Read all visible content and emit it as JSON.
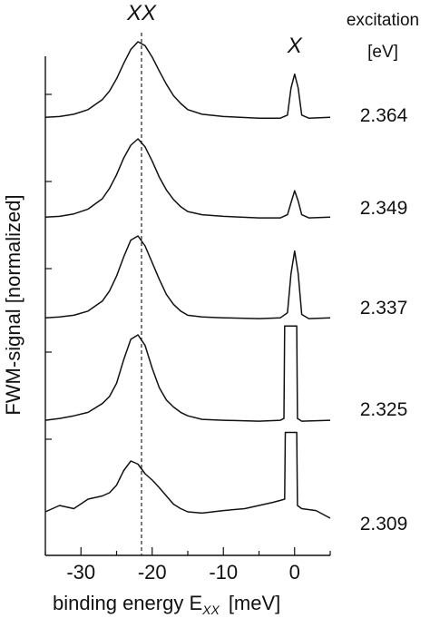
{
  "chart_data": {
    "type": "line",
    "title": "",
    "xlabel": "binding energy E",
    "xlabel_subscript": "XX",
    "xlabel_unit": "[meV]",
    "ylabel": "FWM-signal [normalized]",
    "xlim": [
      -35,
      5
    ],
    "xticks": [
      -30,
      -20,
      -10,
      0
    ],
    "xtick_labels": [
      "-30",
      "-20",
      "-10",
      "0"
    ],
    "legend_title": [
      "excitation",
      "[eV]"
    ],
    "annotations": {
      "biexciton": "XX",
      "exciton": "X",
      "biexciton_line_x": -21.5
    },
    "series": [
      {
        "name": "2.364",
        "points": [
          [
            -35,
            0.02
          ],
          [
            -33,
            0.03
          ],
          [
            -31,
            0.06
          ],
          [
            -29,
            0.12
          ],
          [
            -27,
            0.25
          ],
          [
            -26,
            0.36
          ],
          [
            -25,
            0.52
          ],
          [
            -24,
            0.72
          ],
          [
            -23,
            0.9
          ],
          [
            -22,
            1.0
          ],
          [
            -21,
            0.95
          ],
          [
            -20,
            0.8
          ],
          [
            -19,
            0.62
          ],
          [
            -18,
            0.45
          ],
          [
            -17,
            0.3
          ],
          [
            -16,
            0.2
          ],
          [
            -15,
            0.12
          ],
          [
            -13,
            0.06
          ],
          [
            -10,
            0.03
          ],
          [
            -5,
            0.01
          ],
          [
            -2,
            0.01
          ],
          [
            -1,
            0.05
          ],
          [
            -0.5,
            0.4
          ],
          [
            0,
            0.58
          ],
          [
            0.5,
            0.4
          ],
          [
            1,
            0.05
          ],
          [
            2,
            0.01
          ],
          [
            5,
            0.02
          ]
        ]
      },
      {
        "name": "2.349",
        "points": [
          [
            -35,
            0.02
          ],
          [
            -33,
            0.03
          ],
          [
            -31,
            0.06
          ],
          [
            -29,
            0.12
          ],
          [
            -27,
            0.25
          ],
          [
            -26,
            0.38
          ],
          [
            -25,
            0.55
          ],
          [
            -24,
            0.76
          ],
          [
            -23,
            0.92
          ],
          [
            -22,
            1.0
          ],
          [
            -21,
            0.9
          ],
          [
            -20,
            0.72
          ],
          [
            -19,
            0.52
          ],
          [
            -18,
            0.36
          ],
          [
            -17,
            0.24
          ],
          [
            -16,
            0.15
          ],
          [
            -15,
            0.09
          ],
          [
            -13,
            0.05
          ],
          [
            -10,
            0.03
          ],
          [
            -5,
            0.01
          ],
          [
            -2,
            0.01
          ],
          [
            -1,
            0.05
          ],
          [
            -0.5,
            0.2
          ],
          [
            0,
            0.35
          ],
          [
            0.5,
            0.22
          ],
          [
            1,
            0.05
          ],
          [
            2,
            0.01
          ],
          [
            5,
            0.02
          ]
        ]
      },
      {
        "name": "2.337",
        "points": [
          [
            -35,
            0.02
          ],
          [
            -33,
            0.03
          ],
          [
            -31,
            0.05
          ],
          [
            -29,
            0.1
          ],
          [
            -27,
            0.22
          ],
          [
            -26,
            0.34
          ],
          [
            -25,
            0.52
          ],
          [
            -24,
            0.75
          ],
          [
            -23,
            0.95
          ],
          [
            -22,
            1.0
          ],
          [
            -21,
            0.88
          ],
          [
            -20,
            0.68
          ],
          [
            -19,
            0.48
          ],
          [
            -18,
            0.3
          ],
          [
            -17,
            0.18
          ],
          [
            -16,
            0.1
          ],
          [
            -15,
            0.05
          ],
          [
            -13,
            0.03
          ],
          [
            -10,
            0.02
          ],
          [
            -5,
            0.01
          ],
          [
            -2,
            0.02
          ],
          [
            -1,
            0.08
          ],
          [
            -0.5,
            0.55
          ],
          [
            0,
            0.82
          ],
          [
            0.5,
            0.55
          ],
          [
            1,
            0.06
          ],
          [
            2,
            0.01
          ],
          [
            5,
            0.02
          ]
        ]
      },
      {
        "name": "2.325",
        "points": [
          [
            -35,
            0.03
          ],
          [
            -33,
            0.05
          ],
          [
            -31,
            0.08
          ],
          [
            -29,
            0.12
          ],
          [
            -27,
            0.22
          ],
          [
            -26,
            0.3
          ],
          [
            -25,
            0.45
          ],
          [
            -24,
            0.72
          ],
          [
            -23,
            0.95
          ],
          [
            -22,
            1.0
          ],
          [
            -21,
            0.88
          ],
          [
            -20,
            0.62
          ],
          [
            -19,
            0.4
          ],
          [
            -18,
            0.26
          ],
          [
            -17,
            0.18
          ],
          [
            -16,
            0.12
          ],
          [
            -15,
            0.08
          ],
          [
            -13,
            0.04
          ],
          [
            -10,
            0.03
          ],
          [
            -5,
            0.02
          ],
          [
            -2,
            0.03
          ],
          [
            -1.5,
            0.05
          ],
          [
            -1.4,
            1.1
          ],
          [
            0,
            1.1
          ],
          [
            0.3,
            1.1
          ],
          [
            0.4,
            0.05
          ],
          [
            1,
            0.02
          ],
          [
            5,
            0.03
          ]
        ]
      },
      {
        "name": "2.309",
        "points": [
          [
            -35,
            0.2
          ],
          [
            -33,
            0.3
          ],
          [
            -31,
            0.25
          ],
          [
            -29,
            0.4
          ],
          [
            -27,
            0.45
          ],
          [
            -26,
            0.5
          ],
          [
            -25,
            0.62
          ],
          [
            -24,
            0.85
          ],
          [
            -23,
            1.0
          ],
          [
            -22,
            0.95
          ],
          [
            -21,
            0.8
          ],
          [
            -20,
            0.7
          ],
          [
            -19,
            0.58
          ],
          [
            -18,
            0.45
          ],
          [
            -17,
            0.32
          ],
          [
            -16,
            0.25
          ],
          [
            -15,
            0.2
          ],
          [
            -13,
            0.18
          ],
          [
            -10,
            0.22
          ],
          [
            -7,
            0.25
          ],
          [
            -5,
            0.3
          ],
          [
            -3,
            0.35
          ],
          [
            -2,
            0.38
          ],
          [
            -1.4,
            0.4
          ],
          [
            -1.3,
            1.45
          ],
          [
            0.3,
            1.45
          ],
          [
            0.4,
            0.3
          ],
          [
            1,
            0.25
          ],
          [
            3,
            0.22
          ],
          [
            5,
            0.1
          ]
        ]
      }
    ],
    "excitation_labels": [
      "2.364",
      "2.349",
      "2.337",
      "2.325",
      "2.309"
    ]
  }
}
